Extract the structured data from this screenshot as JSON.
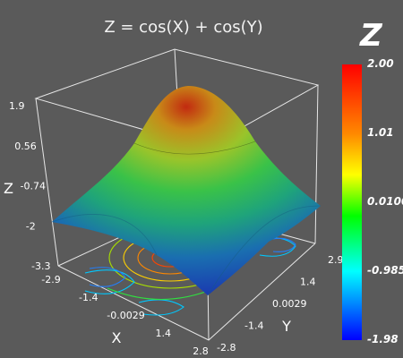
{
  "chart_data": {
    "type": "surface3d",
    "title": "Z = cos(X) + cos(Y)",
    "xlabel": "X",
    "ylabel": "Y",
    "zlabel": "Z",
    "x_ticks": [
      "-2.9",
      "-1.4",
      "-0.0029",
      "1.4",
      "2.8"
    ],
    "y_ticks": [
      "-2.8",
      "-1.4",
      "0.0029",
      "1.4",
      "2.9"
    ],
    "z_ticks": [
      "1.9",
      "0.56",
      "-0.74",
      "-2",
      "-3.3"
    ],
    "xlim": [
      -2.9,
      2.8
    ],
    "ylim": [
      -2.8,
      2.9
    ],
    "zlim": [
      -3.3,
      1.9
    ],
    "colorbar": {
      "title": "Z",
      "labels": [
        "2.00",
        "1.01",
        "0.0100",
        "-0.985",
        "-1.98"
      ],
      "range": [
        -1.98,
        2.0
      ],
      "colors": [
        "#ff0000",
        "#ff8800",
        "#ffff00",
        "#00ff00",
        "#00ffff",
        "#0000ff"
      ]
    }
  }
}
